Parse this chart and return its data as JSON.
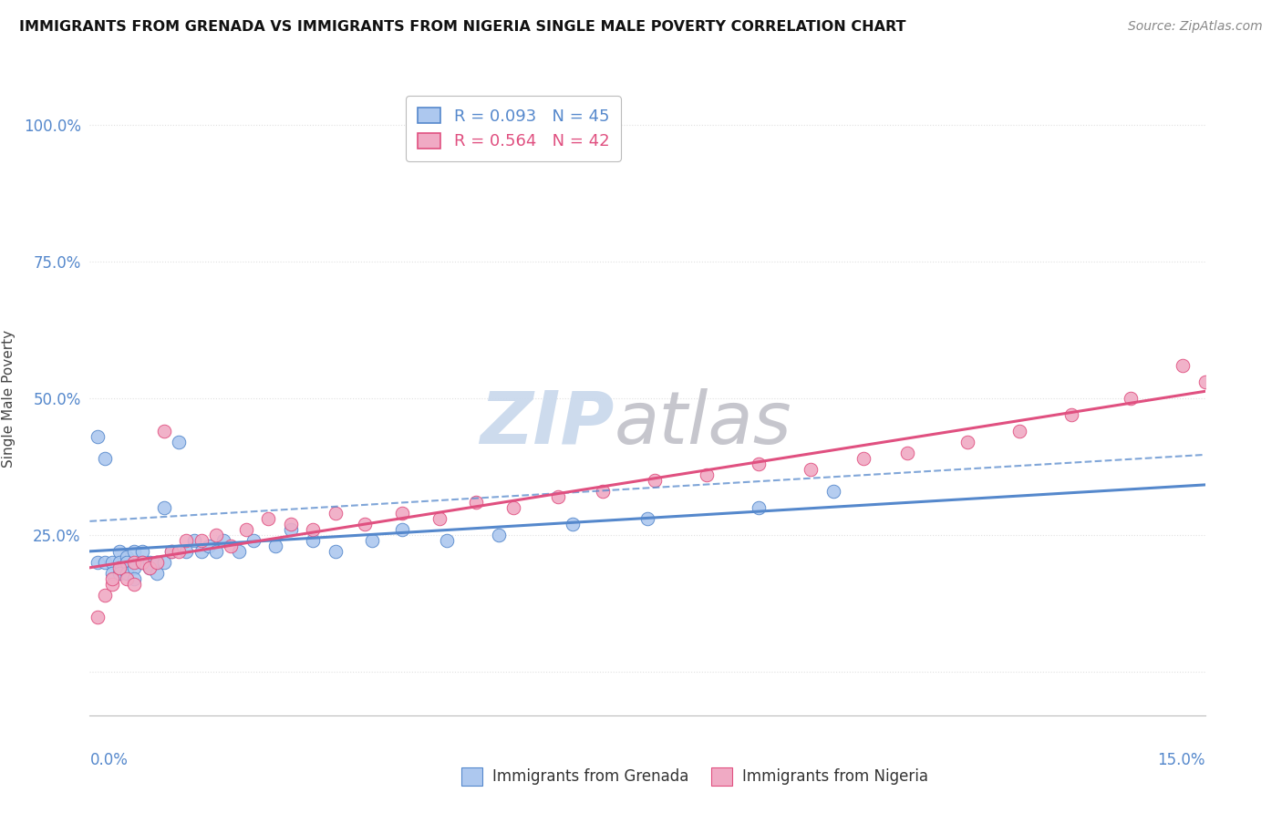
{
  "title": "IMMIGRANTS FROM GRENADA VS IMMIGRANTS FROM NIGERIA SINGLE MALE POVERTY CORRELATION CHART",
  "source": "Source: ZipAtlas.com",
  "ylabel": "Single Male Poverty",
  "xlim": [
    0.0,
    0.15
  ],
  "ylim": [
    -0.08,
    1.08
  ],
  "ytick_positions": [
    0.0,
    0.25,
    0.5,
    0.75,
    1.0
  ],
  "ytick_labels": [
    "",
    "25.0%",
    "50.0%",
    "75.0%",
    "100.0%"
  ],
  "grenada_R": 0.093,
  "grenada_N": 45,
  "nigeria_R": 0.564,
  "nigeria_N": 42,
  "grenada_color": "#adc8ef",
  "nigeria_color": "#f0aac4",
  "grenada_line_color": "#5588cc",
  "nigeria_line_color": "#e05080",
  "grenada_scatter_x": [
    0.001,
    0.001,
    0.002,
    0.002,
    0.003,
    0.003,
    0.004,
    0.004,
    0.004,
    0.005,
    0.005,
    0.005,
    0.006,
    0.006,
    0.006,
    0.007,
    0.007,
    0.008,
    0.008,
    0.009,
    0.009,
    0.01,
    0.01,
    0.011,
    0.012,
    0.013,
    0.014,
    0.015,
    0.016,
    0.017,
    0.018,
    0.02,
    0.022,
    0.025,
    0.027,
    0.03,
    0.033,
    0.038,
    0.042,
    0.048,
    0.055,
    0.065,
    0.075,
    0.09,
    0.1
  ],
  "grenada_scatter_y": [
    0.43,
    0.2,
    0.39,
    0.2,
    0.2,
    0.18,
    0.22,
    0.2,
    0.18,
    0.21,
    0.2,
    0.18,
    0.22,
    0.19,
    0.17,
    0.22,
    0.2,
    0.2,
    0.19,
    0.2,
    0.18,
    0.2,
    0.3,
    0.22,
    0.42,
    0.22,
    0.24,
    0.22,
    0.23,
    0.22,
    0.24,
    0.22,
    0.24,
    0.23,
    0.26,
    0.24,
    0.22,
    0.24,
    0.26,
    0.24,
    0.25,
    0.27,
    0.28,
    0.3,
    0.33
  ],
  "nigeria_scatter_x": [
    0.001,
    0.002,
    0.003,
    0.003,
    0.004,
    0.005,
    0.006,
    0.006,
    0.007,
    0.008,
    0.009,
    0.01,
    0.011,
    0.012,
    0.013,
    0.015,
    0.017,
    0.019,
    0.021,
    0.024,
    0.027,
    0.03,
    0.033,
    0.037,
    0.042,
    0.047,
    0.052,
    0.057,
    0.063,
    0.069,
    0.076,
    0.083,
    0.09,
    0.097,
    0.104,
    0.11,
    0.118,
    0.125,
    0.132,
    0.14,
    0.147,
    0.15
  ],
  "nigeria_scatter_y": [
    0.1,
    0.14,
    0.16,
    0.17,
    0.19,
    0.17,
    0.16,
    0.2,
    0.2,
    0.19,
    0.2,
    0.44,
    0.22,
    0.22,
    0.24,
    0.24,
    0.25,
    0.23,
    0.26,
    0.28,
    0.27,
    0.26,
    0.29,
    0.27,
    0.29,
    0.28,
    0.31,
    0.3,
    0.32,
    0.33,
    0.35,
    0.36,
    0.38,
    0.37,
    0.39,
    0.4,
    0.42,
    0.44,
    0.47,
    0.5,
    0.56,
    0.53
  ],
  "watermark_zip_color": "#c8d8ec",
  "watermark_atlas_color": "#c0c0c8",
  "background_color": "#ffffff",
  "grid_color": "#e0e0e0",
  "tick_color": "#5588cc",
  "ylabel_color": "#444444",
  "title_color": "#111111",
  "source_color": "#888888"
}
